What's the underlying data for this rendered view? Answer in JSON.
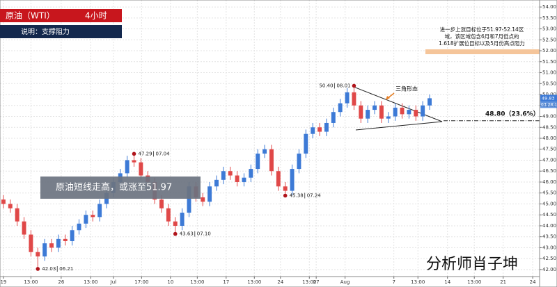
{
  "chart_data": {
    "type": "candlestick",
    "header": {
      "title": "原油（WTI）",
      "period": "4小时",
      "subtitle": "说明：支撑阻力"
    },
    "callout": "原油短线走高，或涨至51.97",
    "target_note": [
      "进一步上涨目标位于51.97-52.14区",
      "域，该区域包含6月和7月低点的",
      "1.618扩展位目标以及5月份高点阻力"
    ],
    "pattern_label": "三角形态",
    "level": {
      "value": 48.8,
      "label": "48.80（23.6%）"
    },
    "watermark": "分析师肖子坤",
    "price_timer": "03:28:1",
    "up_color": "#3d7ad6",
    "down_color": "#e04848",
    "grid": true,
    "xlim": [
      -0.5,
      78
    ],
    "ylim": [
      41.68,
      54.32
    ],
    "xticks": [
      {
        "value": 0,
        "label": "19"
      },
      {
        "value": 4,
        "label": "13:00"
      },
      {
        "value": 8.4,
        "label": "26"
      },
      {
        "value": 12.7,
        "label": "13:00"
      },
      {
        "value": 16,
        "label": "Jul"
      },
      {
        "value": 20.1,
        "label": "17:00"
      },
      {
        "value": 24.3,
        "label": "10"
      },
      {
        "value": 28.2,
        "label": "13:00"
      },
      {
        "value": 32.4,
        "label": "17"
      },
      {
        "value": 36.5,
        "label": "13:00"
      },
      {
        "value": 40.3,
        "label": "24"
      },
      {
        "value": 44.5,
        "label": "13:00"
      },
      {
        "value": 45.5,
        "label": "27"
      },
      {
        "value": 49.7,
        "label": "Aug"
      },
      {
        "value": 56.8,
        "label": "7"
      },
      {
        "value": 60.3,
        "label": "13:00"
      },
      {
        "value": 64.6,
        "label": "14"
      },
      {
        "value": 68.5,
        "label": "13:00"
      },
      {
        "value": 72.7,
        "label": "21"
      },
      {
        "value": 77,
        "label": "24"
      }
    ],
    "yticks": [
      {
        "value": 42,
        "label": "42.00"
      },
      {
        "value": 42.5,
        "label": "42.50"
      },
      {
        "value": 43,
        "label": "43.00"
      },
      {
        "value": 43.5,
        "label": "43.50"
      },
      {
        "value": 44,
        "label": "44.00"
      },
      {
        "value": 44.5,
        "label": "44.50"
      },
      {
        "value": 45,
        "label": "45.00"
      },
      {
        "value": 45.5,
        "label": "45.50"
      },
      {
        "value": 46,
        "label": "46.00"
      },
      {
        "value": 46.5,
        "label": "46.50"
      },
      {
        "value": 47,
        "label": "47.00"
      },
      {
        "value": 47.5,
        "label": "47.50"
      },
      {
        "value": 48,
        "label": "48.00"
      },
      {
        "value": 48.5,
        "label": "48.50"
      },
      {
        "value": 49,
        "label": "49.00"
      },
      {
        "value": 49.5,
        "label": "49.50"
      },
      {
        "value": 50,
        "label": "50.00"
      },
      {
        "value": 50.5,
        "label": "50.50"
      },
      {
        "value": 51,
        "label": "51.00"
      },
      {
        "value": 51.5,
        "label": "51.50"
      },
      {
        "value": 52,
        "label": "52.00"
      },
      {
        "value": 52.5,
        "label": "52.50"
      },
      {
        "value": 53,
        "label": "53.00"
      },
      {
        "value": 53.5,
        "label": "53.50"
      },
      {
        "value": 54,
        "label": "54.00"
      }
    ],
    "open": [
      45.2,
      45.0,
      44.8,
      44.2,
      43.6,
      42.8,
      42.6,
      43.2,
      43.0,
      43.4,
      43.3,
      43.8,
      44.1,
      44.5,
      44.4,
      45.0,
      45.5,
      46.0,
      46.4,
      47.0,
      46.9,
      46.3,
      46.0,
      45.2,
      44.8,
      44.2,
      44.0,
      44.6,
      45.8,
      45.3,
      45.1,
      45.8,
      46.1,
      46.5,
      46.3,
      46.0,
      46.2,
      46.6,
      47.3,
      47.5,
      46.5,
      45.8,
      45.6,
      46.6,
      47.3,
      48.2,
      48.5,
      48.3,
      48.7,
      49.2,
      49.6,
      50.1,
      49.5,
      48.9,
      49.3,
      49.5,
      48.9,
      49.0,
      49.4,
      49.1,
      49.3,
      49.0,
      49.5
    ],
    "high": [
      45.4,
      45.2,
      45.0,
      44.4,
      43.8,
      43.0,
      43.4,
      43.4,
      43.6,
      43.6,
      44.0,
      44.3,
      44.7,
      44.7,
      45.2,
      45.7,
      46.2,
      46.6,
      47.2,
      47.29,
      47.1,
      46.5,
      46.2,
      45.4,
      45.0,
      44.4,
      44.8,
      46.0,
      46.0,
      45.5,
      46.0,
      46.3,
      46.7,
      46.7,
      46.5,
      46.4,
      46.8,
      47.5,
      47.7,
      47.7,
      46.7,
      46.0,
      46.8,
      47.5,
      48.4,
      48.7,
      48.7,
      48.9,
      49.4,
      49.8,
      50.3,
      50.4,
      49.7,
      49.5,
      49.7,
      49.7,
      49.2,
      49.6,
      49.6,
      49.5,
      49.5,
      49.7,
      50.0
    ],
    "low": [
      44.8,
      44.6,
      44.0,
      43.4,
      42.6,
      42.03,
      42.4,
      42.8,
      42.8,
      43.1,
      43.1,
      43.6,
      43.9,
      44.2,
      44.2,
      44.8,
      45.3,
      45.8,
      46.2,
      46.7,
      46.1,
      45.8,
      45.0,
      44.6,
      44.0,
      43.63,
      43.8,
      44.4,
      45.1,
      44.9,
      44.9,
      45.6,
      45.9,
      46.1,
      45.8,
      45.8,
      46.0,
      46.4,
      47.1,
      46.3,
      45.6,
      45.38,
      45.4,
      46.4,
      47.1,
      48.0,
      48.1,
      48.1,
      48.5,
      49.0,
      49.4,
      49.3,
      48.7,
      48.7,
      49.1,
      48.7,
      48.7,
      48.8,
      48.9,
      48.9,
      48.8,
      48.8,
      49.3
    ],
    "close": [
      45.0,
      44.8,
      44.2,
      43.6,
      42.8,
      42.6,
      43.2,
      43.0,
      43.4,
      43.3,
      43.8,
      44.1,
      44.5,
      44.4,
      45.0,
      45.5,
      46.0,
      46.4,
      47.0,
      46.9,
      46.3,
      46.0,
      45.2,
      44.8,
      44.2,
      44.0,
      44.6,
      45.8,
      45.3,
      45.1,
      45.8,
      46.1,
      46.5,
      46.3,
      46.0,
      46.2,
      46.6,
      47.3,
      47.5,
      46.5,
      45.8,
      45.6,
      46.6,
      47.3,
      48.2,
      48.5,
      48.3,
      48.7,
      49.2,
      49.6,
      50.1,
      49.5,
      48.9,
      49.3,
      49.5,
      48.9,
      49.0,
      49.4,
      49.1,
      49.3,
      49.0,
      49.5,
      49.83
    ],
    "annotations": [
      {
        "x": 51,
        "value": 50.4,
        "label": "50.40",
        "date": "08.01"
      },
      {
        "x": 19,
        "value": 47.29,
        "label": "47.29",
        "date": "07.04"
      },
      {
        "x": 25,
        "value": 43.63,
        "label": "43.63",
        "date": "07.10"
      },
      {
        "x": 41,
        "value": 45.38,
        "label": "45.38",
        "date": "07.24"
      },
      {
        "x": 5,
        "value": 42.03,
        "label": "42.03",
        "date": "06.21"
      }
    ]
  }
}
